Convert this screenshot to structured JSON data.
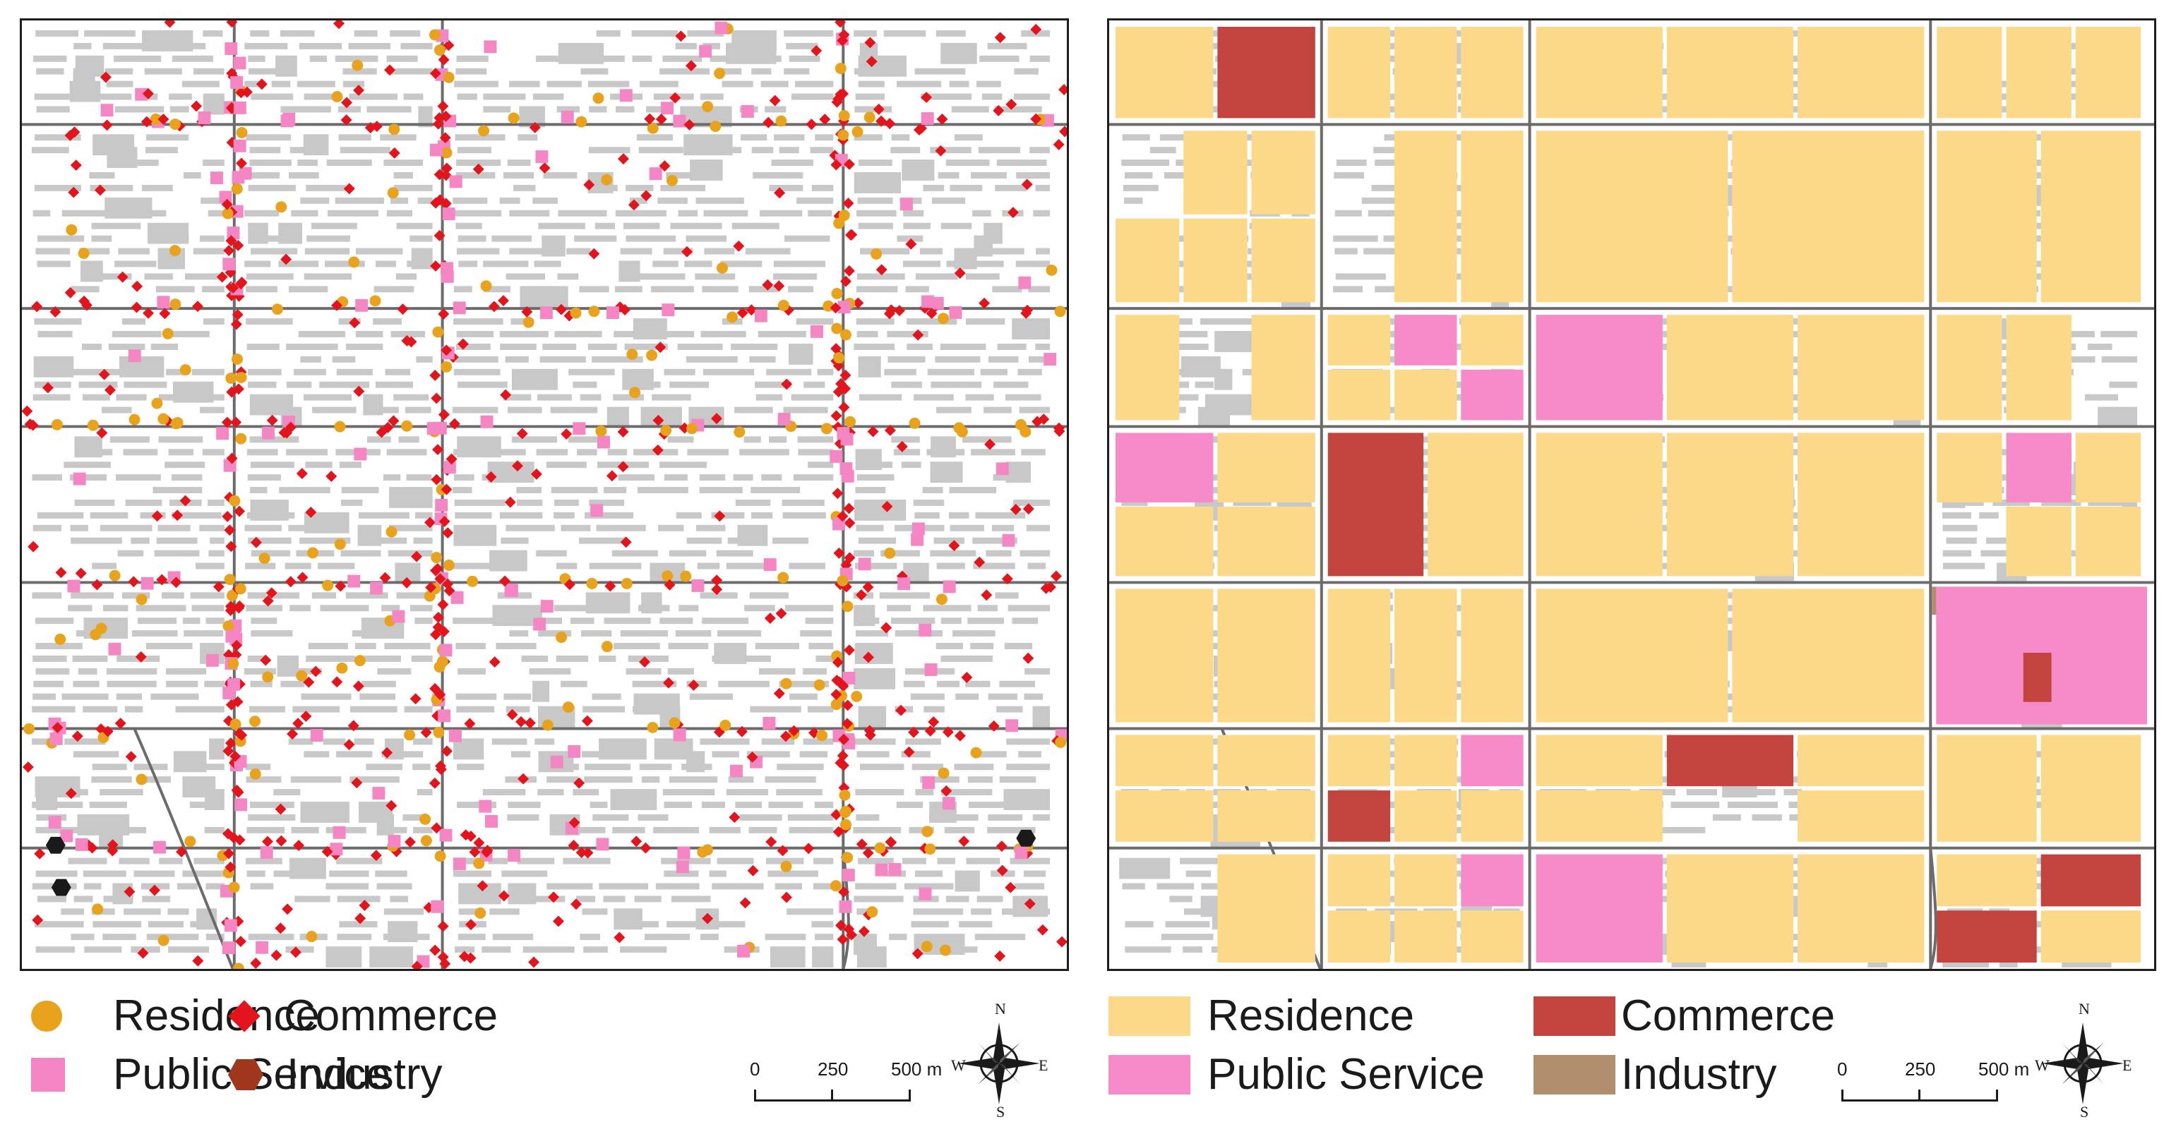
{
  "figure": {
    "panels": [
      {
        "id": "left",
        "title": "",
        "symbology": "points"
      },
      {
        "id": "right",
        "title": "",
        "symbology": "parcels"
      }
    ]
  },
  "legend_left": {
    "residence": "Residence",
    "public_service": "Public Service",
    "commerce": "Commerce",
    "industry": "Industry"
  },
  "legend_right": {
    "residence": "Residence",
    "public_service": "Public Service",
    "commerce": "Commerce",
    "industry": "Industry"
  },
  "scale": {
    "tick_0": "0",
    "tick_1": "250",
    "tick_2": "500 m"
  },
  "compass": {
    "north": "N",
    "south": "S",
    "east": "E",
    "west": "W"
  },
  "colors": {
    "residence_point": "#e8a21b",
    "public_service_point": "#f487c3",
    "commerce_point": "#e3141b",
    "industry_point": "#a0361b",
    "residence_parcel": "#fcd989",
    "public_service_parcel": "#f78ac9",
    "commerce_parcel": "#c3433e",
    "industry_parcel": "#b18e6c",
    "building": "#c8c8c8",
    "road": "#6b6b6b"
  }
}
